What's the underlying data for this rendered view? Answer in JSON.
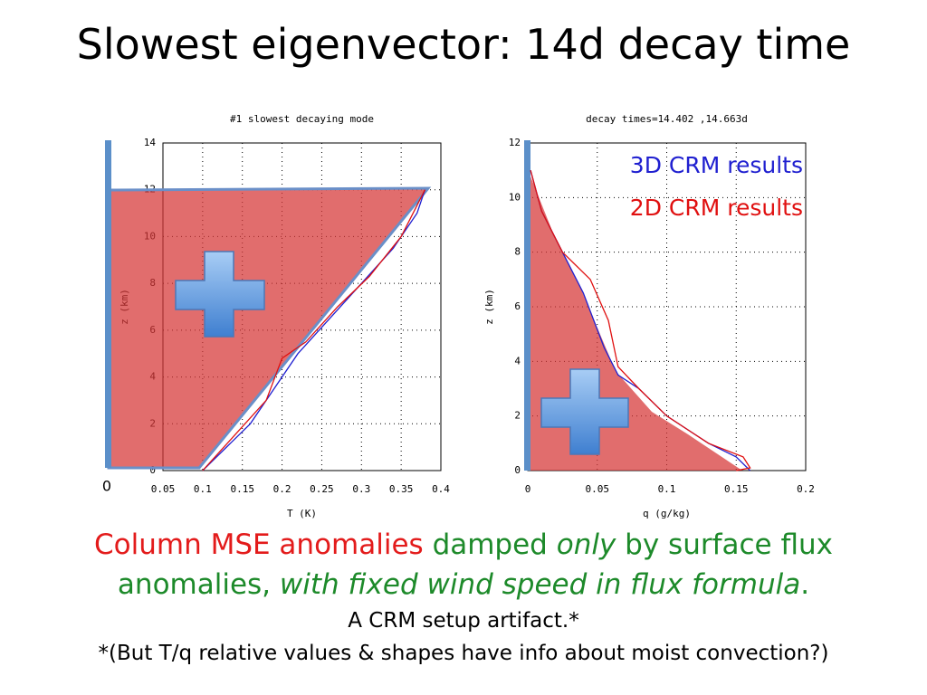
{
  "slide": {
    "title": "Slowest eigenvector: 14d decay time",
    "zero_label": "0",
    "caption": [
      [
        "Column MSE anomalies",
        "damped",
        "only",
        "by surface flux"
      ],
      [
        "anomalies,",
        "with fixed wind speed in flux formula",
        "."
      ],
      [
        "A CRM setup artifact.*"
      ],
      [
        "*(But T/q relative values & shapes have info about moist convection?)"
      ]
    ]
  },
  "chart_data": [
    {
      "type": "line",
      "title": "#1 slowest decaying mode",
      "xlabel": "T (K)",
      "ylabel": "z (km)",
      "xlim": [
        0.05,
        0.4
      ],
      "xticks": [
        0.05,
        0.1,
        0.15,
        0.2,
        0.25,
        0.3,
        0.35,
        0.4
      ],
      "ylim": [
        0,
        14
      ],
      "yticks": [
        0,
        2,
        4,
        6,
        8,
        10,
        12,
        14
      ],
      "grid": true,
      "series": [
        {
          "color": "#2020d0",
          "x": [
            0.1,
            0.13,
            0.16,
            0.19,
            0.22,
            0.26,
            0.3,
            0.34,
            0.37,
            0.38
          ],
          "values": [
            0,
            1,
            2,
            3.5,
            5,
            6.5,
            8,
            9.5,
            11,
            12
          ]
        },
        {
          "color": "#e01010",
          "x": [
            0.1,
            0.14,
            0.18,
            0.2,
            0.23,
            0.27,
            0.31,
            0.35,
            0.38
          ],
          "values": [
            0,
            1.5,
            3,
            4.8,
            5.5,
            7,
            8.3,
            10,
            12
          ]
        }
      ]
    },
    {
      "type": "line",
      "title": "decay times=14.402 ,14.663d",
      "xlabel": "q (g/kg)",
      "ylabel": "z (km)",
      "xlim": [
        0,
        0.2
      ],
      "xticks": [
        0,
        0.05,
        0.1,
        0.15,
        0.2
      ],
      "ylim": [
        0,
        12
      ],
      "yticks": [
        0,
        2,
        4,
        6,
        8,
        10,
        12
      ],
      "grid": true,
      "legend": "upper right",
      "series": [
        {
          "name": "3D CRM results",
          "color": "#2020d0",
          "x": [
            0.002,
            0.01,
            0.025,
            0.04,
            0.055,
            0.065,
            0.08,
            0.1,
            0.13,
            0.15,
            0.16
          ],
          "values": [
            11,
            9.5,
            8,
            6.5,
            4.5,
            3.5,
            3,
            2,
            1,
            0.5,
            0
          ]
        },
        {
          "name": "2D CRM results",
          "color": "#e01010",
          "x": [
            0.002,
            0.01,
            0.025,
            0.045,
            0.058,
            0.065,
            0.08,
            0.1,
            0.13,
            0.155,
            0.16,
            0.15
          ],
          "values": [
            11,
            9.5,
            8,
            7,
            5.5,
            3.8,
            3,
            2,
            1,
            0.5,
            0.1,
            0
          ]
        }
      ]
    }
  ]
}
